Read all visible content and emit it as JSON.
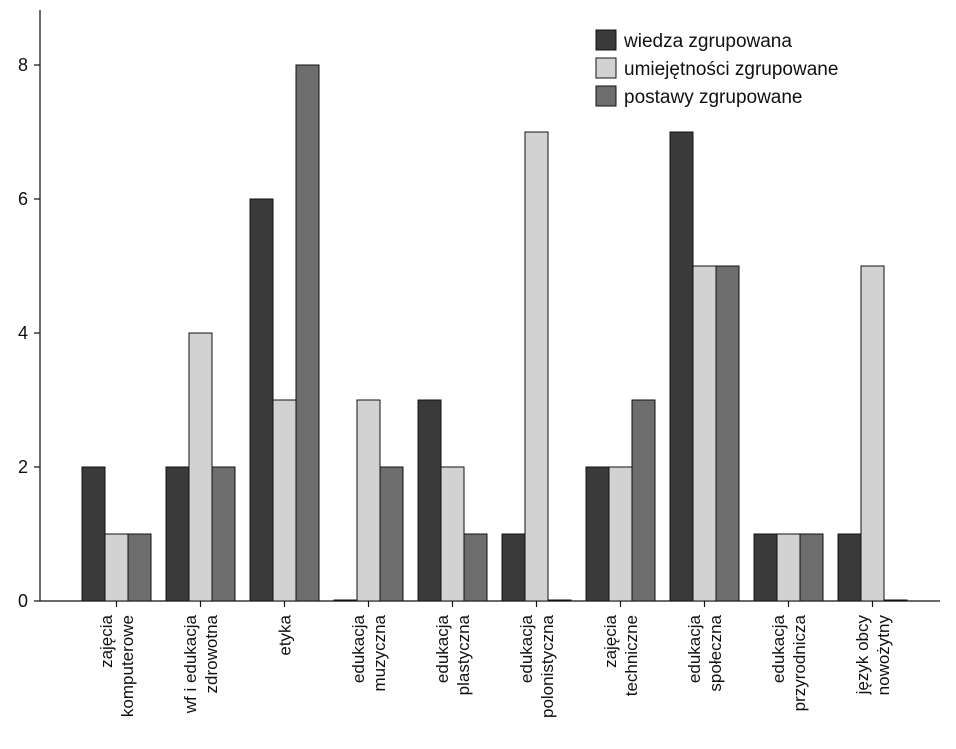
{
  "chart_data": {
    "type": "bar",
    "title": "",
    "xlabel": "",
    "ylabel": "",
    "ylim": [
      0,
      9
    ],
    "yticks": [
      0,
      2,
      4,
      6,
      8
    ],
    "grid": false,
    "legend_position": "top-right",
    "categories": [
      [
        "zajęcia",
        "komputerowe"
      ],
      [
        "wf i edukacja",
        "zdrowotna"
      ],
      [
        "etyka"
      ],
      [
        "edukacja",
        "muzyczna"
      ],
      [
        "edukacja",
        "plastyczna"
      ],
      [
        "edukacja",
        "polonistyczna"
      ],
      [
        "zajęcia",
        "techniczne"
      ],
      [
        "edukacja",
        "społeczna"
      ],
      [
        "edukacja",
        "przyrodnicza"
      ],
      [
        "język obcy",
        "nowożytny"
      ]
    ],
    "series": [
      {
        "name": "wiedza zgrupowana",
        "color": "#3a3a3a",
        "values": [
          2,
          2,
          6,
          0,
          3,
          1,
          2,
          7,
          1,
          1
        ]
      },
      {
        "name": "umiejętności zgrupowane",
        "color": "#d2d2d2",
        "values": [
          1,
          4,
          3,
          3,
          2,
          7,
          2,
          5,
          1,
          5
        ]
      },
      {
        "name": "postawy zgrupowane",
        "color": "#6e6e6e",
        "values": [
          1,
          2,
          8,
          2,
          1,
          0,
          3,
          5,
          1,
          0
        ]
      }
    ]
  }
}
